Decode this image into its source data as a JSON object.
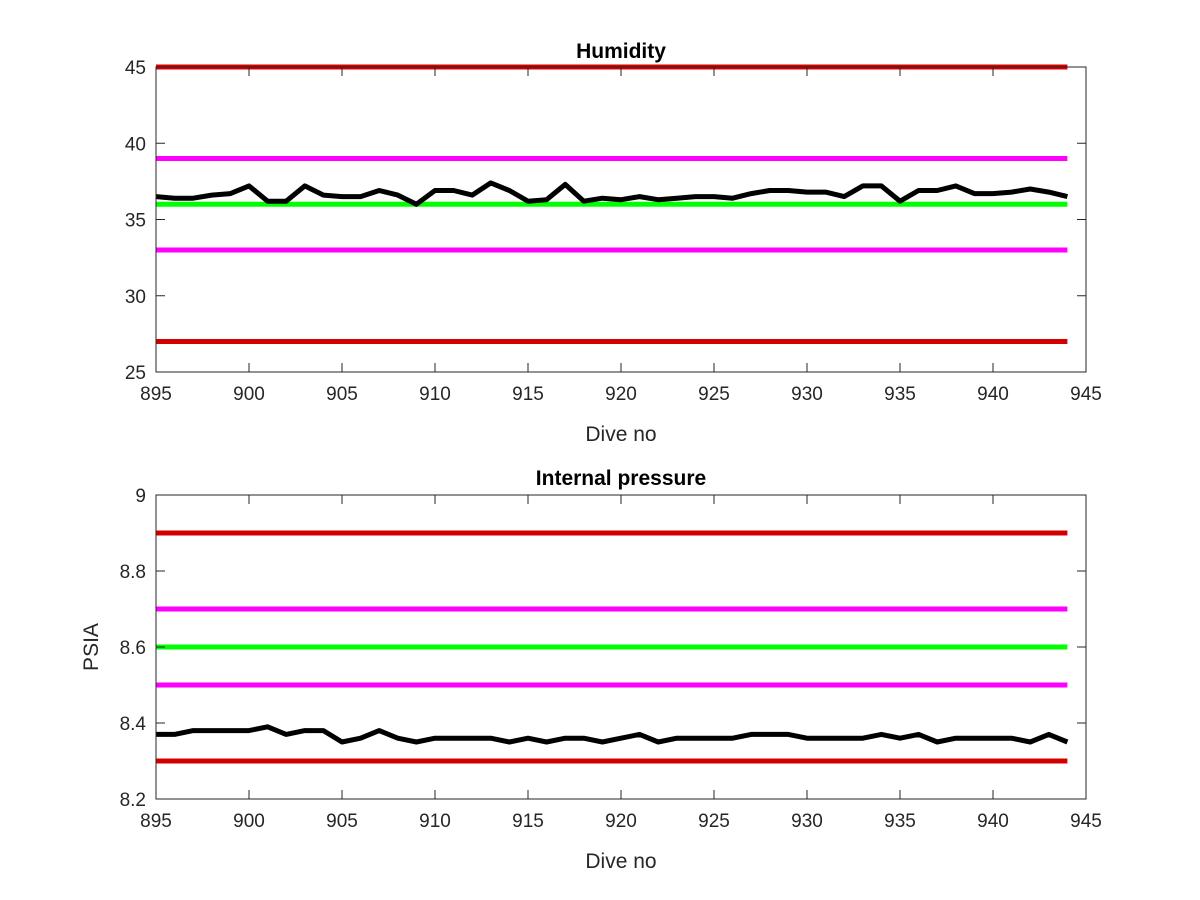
{
  "chart_data": [
    {
      "type": "line",
      "title": "Humidity",
      "xlabel": "Dive no",
      "ylabel": "",
      "xlim": [
        895,
        945
      ],
      "ylim": [
        25,
        45
      ],
      "xticks": [
        "895",
        "900",
        "905",
        "910",
        "915",
        "920",
        "925",
        "930",
        "935",
        "940",
        "945"
      ],
      "yticks": [
        "25",
        "30",
        "35",
        "40",
        "45"
      ],
      "grid": false,
      "legend": "none",
      "thresholds": [
        {
          "value": 45,
          "color": "#d40000",
          "x": [
            895,
            944
          ]
        },
        {
          "value": 39,
          "color": "#ff00ff",
          "x": [
            895,
            944
          ]
        },
        {
          "value": 36,
          "color": "#00ff00",
          "x": [
            895,
            944
          ]
        },
        {
          "value": 33,
          "color": "#ff00ff",
          "x": [
            895,
            944
          ]
        },
        {
          "value": 27,
          "color": "#d40000",
          "x": [
            895,
            944
          ]
        }
      ],
      "series": [
        {
          "color": "#000000",
          "x": [
            895,
            896,
            897,
            898,
            899,
            900,
            901,
            902,
            903,
            904,
            905,
            906,
            907,
            908,
            909,
            910,
            911,
            912,
            913,
            914,
            915,
            916,
            917,
            918,
            919,
            920,
            921,
            922,
            923,
            924,
            925,
            926,
            927,
            928,
            929,
            930,
            931,
            932,
            933,
            934,
            935,
            936,
            937,
            938,
            939,
            940,
            941,
            942,
            943,
            944
          ],
          "values": [
            36.5,
            36.4,
            36.4,
            36.6,
            36.7,
            37.2,
            36.2,
            36.2,
            37.2,
            36.6,
            36.5,
            36.5,
            36.9,
            36.6,
            36.0,
            36.9,
            36.9,
            36.6,
            37.4,
            36.9,
            36.2,
            36.3,
            37.3,
            36.2,
            36.4,
            36.3,
            36.5,
            36.3,
            36.4,
            36.5,
            36.5,
            36.4,
            36.7,
            36.9,
            36.9,
            36.8,
            36.8,
            36.5,
            37.2,
            37.2,
            36.2,
            36.9,
            36.9,
            37.2,
            36.7,
            36.7,
            36.8,
            37.0,
            36.8,
            36.5
          ]
        }
      ]
    },
    {
      "type": "line",
      "title": "Internal pressure",
      "xlabel": "Dive no",
      "ylabel": "PSIA",
      "xlim": [
        895,
        945
      ],
      "ylim": [
        8.2,
        9.0
      ],
      "xticks": [
        "895",
        "900",
        "905",
        "910",
        "915",
        "920",
        "925",
        "930",
        "935",
        "940",
        "945"
      ],
      "yticks": [
        "8.2",
        "8.4",
        "8.6",
        "8.8",
        "9"
      ],
      "grid": false,
      "legend": "none",
      "thresholds": [
        {
          "value": 8.9,
          "color": "#d40000",
          "x": [
            895,
            944
          ]
        },
        {
          "value": 8.7,
          "color": "#ff00ff",
          "x": [
            895,
            944
          ]
        },
        {
          "value": 8.6,
          "color": "#00ff00",
          "x": [
            895,
            944
          ]
        },
        {
          "value": 8.5,
          "color": "#ff00ff",
          "x": [
            895,
            944
          ]
        },
        {
          "value": 8.3,
          "color": "#d40000",
          "x": [
            895,
            944
          ]
        }
      ],
      "series": [
        {
          "color": "#000000",
          "x": [
            895,
            896,
            897,
            898,
            899,
            900,
            901,
            902,
            903,
            904,
            905,
            906,
            907,
            908,
            909,
            910,
            911,
            912,
            913,
            914,
            915,
            916,
            917,
            918,
            919,
            920,
            921,
            922,
            923,
            924,
            925,
            926,
            927,
            928,
            929,
            930,
            931,
            932,
            933,
            934,
            935,
            936,
            937,
            938,
            939,
            940,
            941,
            942,
            943,
            944
          ],
          "values": [
            8.37,
            8.37,
            8.38,
            8.38,
            8.38,
            8.38,
            8.39,
            8.37,
            8.38,
            8.38,
            8.35,
            8.36,
            8.38,
            8.36,
            8.35,
            8.36,
            8.36,
            8.36,
            8.36,
            8.35,
            8.36,
            8.35,
            8.36,
            8.36,
            8.35,
            8.36,
            8.37,
            8.35,
            8.36,
            8.36,
            8.36,
            8.36,
            8.37,
            8.37,
            8.37,
            8.36,
            8.36,
            8.36,
            8.36,
            8.37,
            8.36,
            8.37,
            8.35,
            8.36,
            8.36,
            8.36,
            8.36,
            8.35,
            8.37,
            8.35
          ]
        }
      ]
    }
  ]
}
